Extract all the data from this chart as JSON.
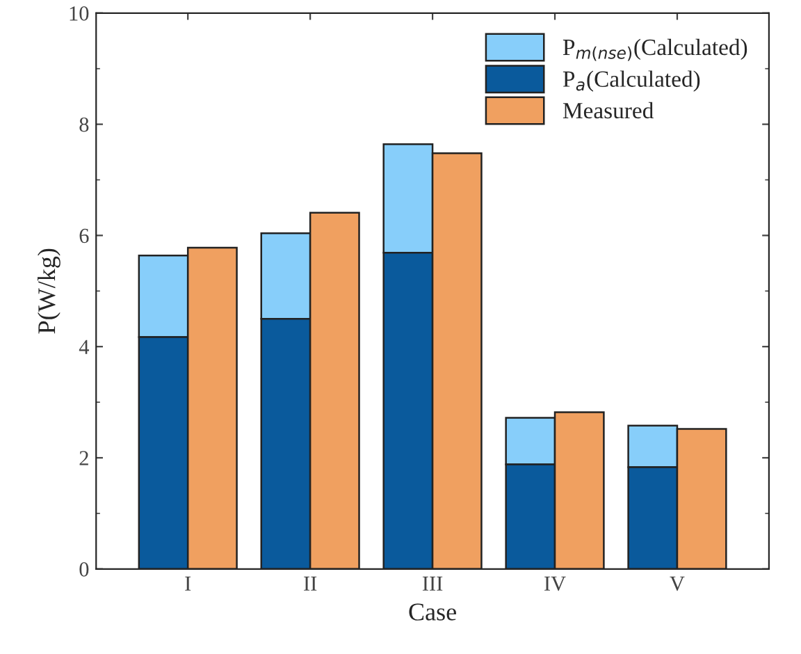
{
  "chart_data": {
    "type": "bar",
    "xlabel": "Case",
    "ylabel": "P(W/kg)",
    "categories": [
      "I",
      "II",
      "III",
      "IV",
      "V"
    ],
    "series": [
      {
        "name": "P$_{m(nse)}$(Calculated)",
        "color": "#87cefa",
        "values": [
          1.47,
          1.54,
          1.95,
          0.84,
          0.75
        ],
        "base": [
          4.17,
          4.5,
          5.69,
          1.88,
          1.83
        ]
      },
      {
        "name": "P$_{a}$(Calculated)",
        "color": "#0a5a9c",
        "values": [
          4.17,
          4.5,
          5.69,
          1.88,
          1.83
        ]
      },
      {
        "name": "Measured",
        "color": "#f0a060",
        "values": [
          5.78,
          6.41,
          7.48,
          2.82,
          2.52
        ]
      }
    ],
    "ylim": [
      0,
      10
    ],
    "yticks": [
      0,
      2,
      4,
      6,
      8,
      10
    ],
    "legend": "top right"
  }
}
